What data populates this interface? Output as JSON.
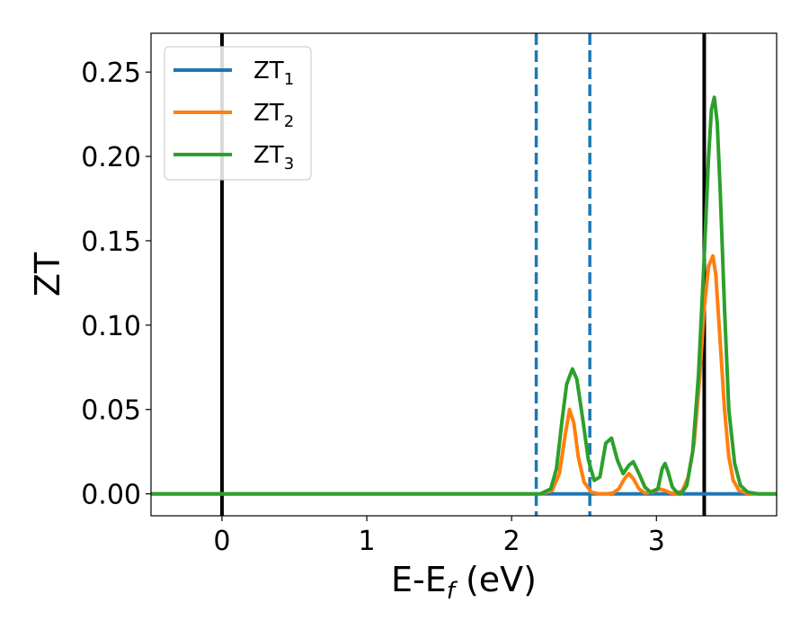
{
  "chart_data": {
    "type": "line",
    "xlabel": {
      "main": "E-E",
      "sub": "f",
      "unit": " (eV)"
    },
    "ylabel": "ZT",
    "xlim": [
      -0.49,
      3.83
    ],
    "ylim": [
      -0.013,
      0.273
    ],
    "xticks": [
      0,
      1,
      2,
      3
    ],
    "xtick_labels": [
      "0",
      "1",
      "2",
      "3"
    ],
    "yticks": [
      0.0,
      0.05,
      0.1,
      0.15,
      0.2,
      0.25
    ],
    "ytick_labels": [
      "0.00",
      "0.05",
      "0.10",
      "0.15",
      "0.20",
      "0.25"
    ],
    "grid": false,
    "legend_position": "top-left",
    "colors": {
      "zt1": "#1f77b4",
      "zt2": "#ff7f0e",
      "zt3": "#2ca02c",
      "frame": "#000000"
    },
    "vertical_lines": [
      {
        "x": 0.0,
        "style": "solid",
        "color": "#000000"
      },
      {
        "x": 3.33,
        "style": "solid",
        "color": "#000000"
      },
      {
        "x": 2.17,
        "style": "dashed",
        "color": "#1f77b4"
      },
      {
        "x": 2.54,
        "style": "dashed",
        "color": "#1f77b4"
      }
    ],
    "series": [
      {
        "name": "ZT",
        "name_sub": "1",
        "color": "#1f77b4",
        "x": [
          -0.49,
          3.83
        ],
        "y": [
          0.0,
          0.0
        ]
      },
      {
        "name": "ZT",
        "name_sub": "2",
        "color": "#ff7f0e",
        "x": [
          -0.49,
          2.2,
          2.28,
          2.33,
          2.37,
          2.4,
          2.43,
          2.46,
          2.5,
          2.55,
          2.6,
          2.65,
          2.7,
          2.74,
          2.78,
          2.81,
          2.84,
          2.88,
          2.92,
          2.97,
          3.02,
          3.06,
          3.1,
          3.14,
          3.18,
          3.22,
          3.26,
          3.3,
          3.33,
          3.36,
          3.39,
          3.41,
          3.44,
          3.47,
          3.5,
          3.53,
          3.57,
          3.62,
          3.7,
          3.83
        ],
        "y": [
          0.0,
          0.0,
          0.002,
          0.012,
          0.035,
          0.05,
          0.042,
          0.022,
          0.007,
          0.001,
          0.0,
          0.0,
          0.0005,
          0.003,
          0.009,
          0.012,
          0.009,
          0.003,
          0.0005,
          0.001,
          0.003,
          0.002,
          0.0005,
          0.0003,
          0.002,
          0.01,
          0.03,
          0.07,
          0.11,
          0.135,
          0.141,
          0.13,
          0.09,
          0.05,
          0.022,
          0.008,
          0.002,
          0.0005,
          0.0,
          0.0
        ]
      },
      {
        "name": "ZT",
        "name_sub": "3",
        "color": "#2ca02c",
        "x": [
          -0.49,
          2.2,
          2.27,
          2.31,
          2.35,
          2.38,
          2.42,
          2.45,
          2.49,
          2.53,
          2.57,
          2.61,
          2.65,
          2.69,
          2.73,
          2.77,
          2.81,
          2.84,
          2.88,
          2.92,
          2.96,
          3.01,
          3.04,
          3.06,
          3.08,
          3.11,
          3.14,
          3.17,
          3.21,
          3.25,
          3.29,
          3.33,
          3.36,
          3.38,
          3.4,
          3.42,
          3.44,
          3.47,
          3.5,
          3.54,
          3.58,
          3.63,
          3.7,
          3.83
        ],
        "y": [
          0.0,
          0.0,
          0.003,
          0.015,
          0.045,
          0.065,
          0.074,
          0.068,
          0.045,
          0.02,
          0.008,
          0.01,
          0.03,
          0.033,
          0.02,
          0.012,
          0.017,
          0.019,
          0.012,
          0.004,
          0.001,
          0.003,
          0.015,
          0.018,
          0.013,
          0.004,
          0.001,
          0.0,
          0.005,
          0.025,
          0.07,
          0.14,
          0.2,
          0.228,
          0.235,
          0.22,
          0.18,
          0.11,
          0.05,
          0.018,
          0.005,
          0.001,
          0.0,
          0.0
        ]
      }
    ]
  }
}
